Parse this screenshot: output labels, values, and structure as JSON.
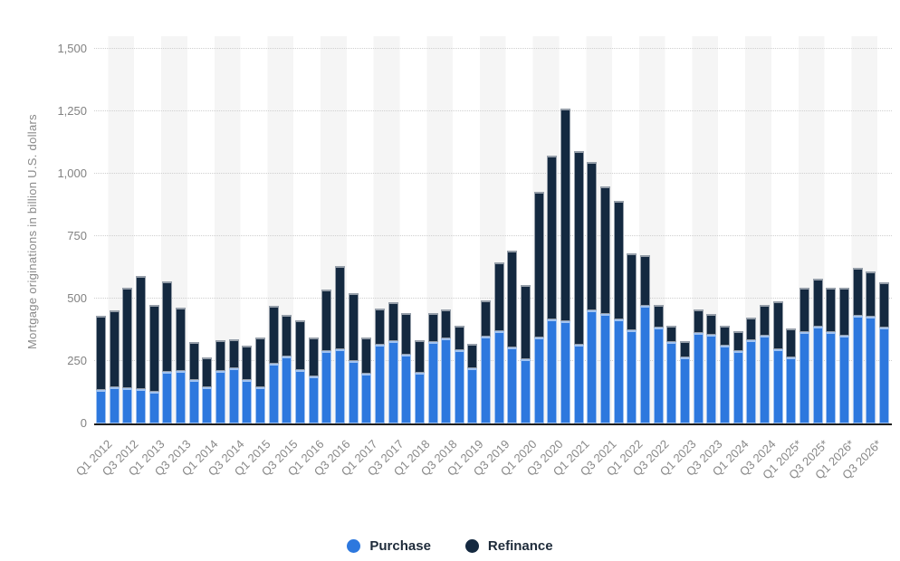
{
  "chart_data": {
    "type": "bar",
    "stacked": true,
    "title": "",
    "xlabel": "",
    "ylabel": "Mortgage originations in billion U.S. dollars",
    "ylim": [
      0,
      1500
    ],
    "yticks": [
      0,
      250,
      500,
      750,
      1000,
      1250,
      1500
    ],
    "ytick_labels": [
      "0",
      "250",
      "500",
      "750",
      "1,000",
      "1,250",
      "1,500"
    ],
    "grid": "horizontal dotted lines, alternating vertical background bands",
    "legend_position": "bottom-center",
    "x_label_shown_every": 2,
    "categories": [
      "Q1 2012",
      "Q2 2012",
      "Q3 2012",
      "Q4 2012",
      "Q1 2013",
      "Q2 2013",
      "Q3 2013",
      "Q4 2013",
      "Q1 2014",
      "Q2 2014",
      "Q3 2014",
      "Q4 2014",
      "Q1 2015",
      "Q2 2015",
      "Q3 2015",
      "Q4 2015",
      "Q1 2016",
      "Q2 2016",
      "Q3 2016",
      "Q4 2016",
      "Q1 2017",
      "Q2 2017",
      "Q3 2017",
      "Q4 2017",
      "Q1 2018",
      "Q2 2018",
      "Q3 2018",
      "Q4 2018",
      "Q1 2019",
      "Q2 2019",
      "Q3 2019",
      "Q4 2019",
      "Q1 2020",
      "Q2 2020",
      "Q3 2020",
      "Q4 2020",
      "Q1 2021",
      "Q2 2021",
      "Q3 2021",
      "Q4 2021",
      "Q1 2022",
      "Q2 2022",
      "Q3 2022",
      "Q4 2022",
      "Q1 2023",
      "Q2 2023",
      "Q3 2023",
      "Q4 2023",
      "Q1 2024",
      "Q2 2024",
      "Q3 2024",
      "Q4 2024",
      "Q1 2025*",
      "Q2 2025*",
      "Q3 2025*",
      "Q4 2025*",
      "Q1 2026*",
      "Q2 2026*",
      "Q3 2026*",
      "Q4 2026*"
    ],
    "series": [
      {
        "name": "Purchase",
        "color": "#2D78DE",
        "values": [
          134,
          144,
          141,
          139,
          128,
          205,
          210,
          175,
          144,
          210,
          220,
          175,
          145,
          240,
          269,
          214,
          187,
          291,
          296,
          249,
          198,
          315,
          329,
          276,
          202,
          326,
          341,
          295,
          220,
          347,
          371,
          304,
          256,
          343,
          416,
          408,
          315,
          453,
          440,
          417,
          373,
          470,
          383,
          326,
          264,
          361,
          355,
          313,
          290,
          332,
          353,
          296,
          266,
          367,
          386,
          365,
          350,
          431,
          428,
          383
        ]
      },
      {
        "name": "Refinance",
        "color": "#142940",
        "values": [
          296,
          308,
          404,
          451,
          346,
          363,
          255,
          150,
          121,
          123,
          116,
          136,
          199,
          230,
          166,
          199,
          156,
          246,
          335,
          273,
          148,
          144,
          156,
          167,
          133,
          117,
          114,
          97,
          99,
          147,
          275,
          389,
          300,
          583,
          655,
          853,
          774,
          594,
          510,
          473,
          308,
          203,
          93,
          65,
          65,
          97,
          82,
          78,
          81,
          91,
          120,
          193,
          113,
          176,
          194,
          178,
          193,
          193,
          182,
          183
        ]
      }
    ]
  },
  "axes": {
    "y_title": "Mortgage originations in billion U.S. dollars"
  },
  "legend": {
    "items": [
      {
        "label": "Purchase",
        "color": "#2D78DE",
        "icon": "circle"
      },
      {
        "label": "Refinance",
        "color": "#142940",
        "icon": "circle"
      }
    ]
  },
  "colors": {
    "purchase": "#2D78DE",
    "refinance": "#142940",
    "gridline": "#cfcfcf",
    "band": "#f5f5f5",
    "axis_line": "#1d1d1d",
    "tick_text": "#888888",
    "legend_text": "#1e2b3a"
  }
}
